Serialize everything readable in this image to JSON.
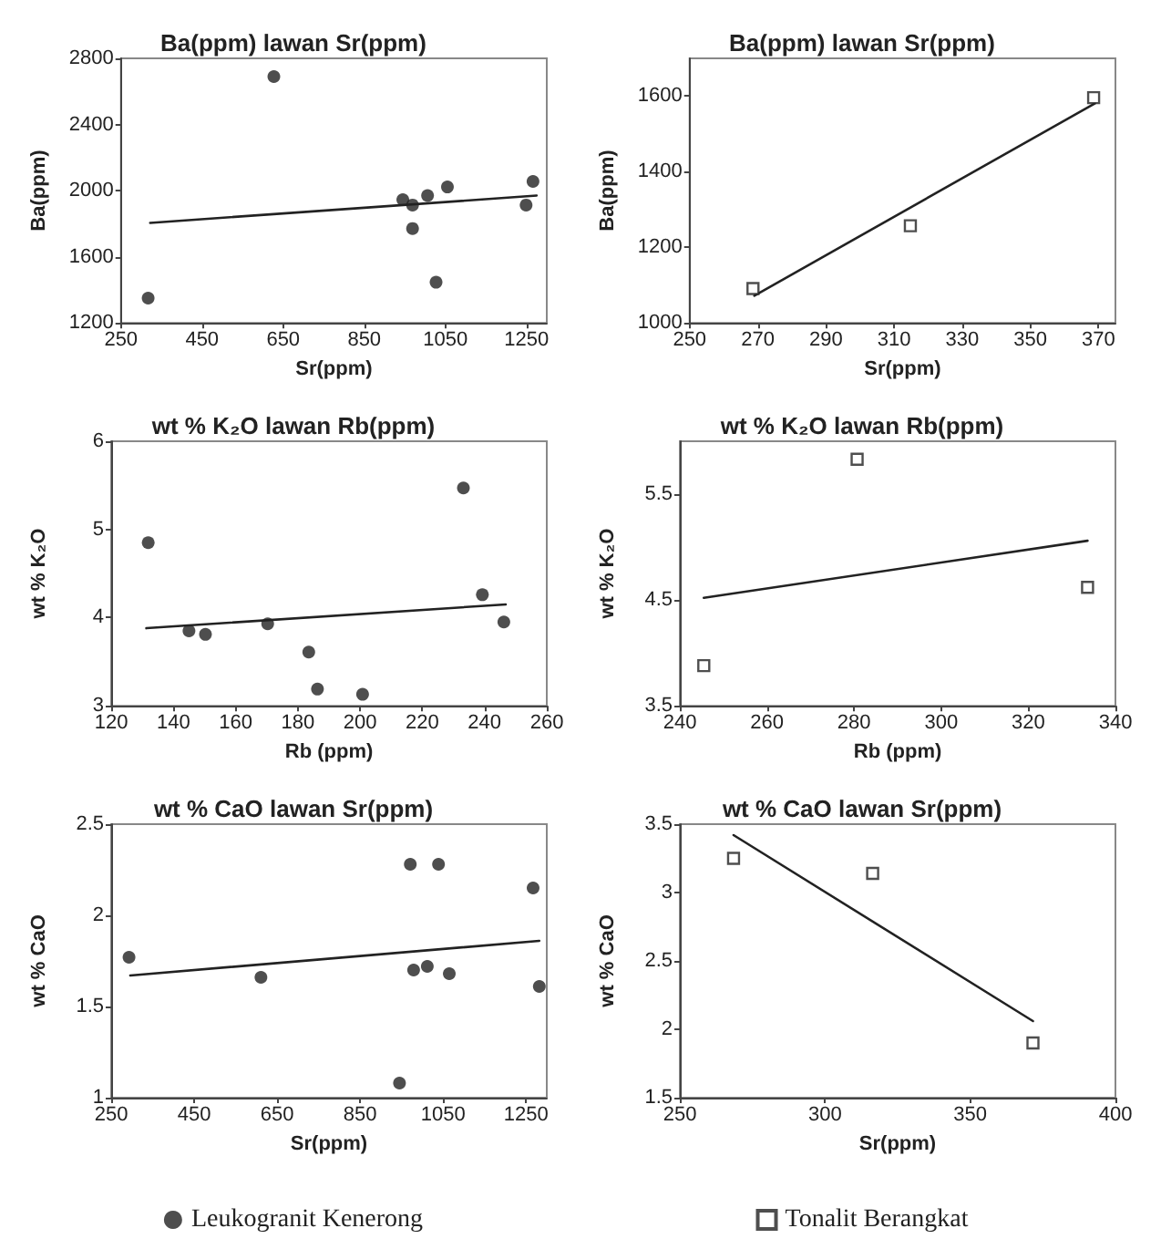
{
  "chart_data": [
    {
      "type": "scatter",
      "title": "Ba(ppm) lawan Sr(ppm)",
      "xlabel": "Sr(ppm)",
      "ylabel": "Ba(ppm)",
      "xlim": [
        250,
        1300
      ],
      "xticks": [
        250,
        450,
        650,
        850,
        1050,
        1250
      ],
      "ylim": [
        1200,
        2800
      ],
      "yticks": [
        1200,
        1600,
        2000,
        2400,
        2800
      ],
      "marker": "circle",
      "grid": false,
      "series": [
        {
          "color": "#222222",
          "x": [
            317,
            627,
            945,
            969,
            969,
            1006,
            1027,
            1055,
            1249,
            1266
          ],
          "values": [
            1350,
            2690,
            1945,
            1913,
            1771,
            1970,
            1446,
            2022,
            1913,
            2056
          ]
        },
        {
          "type": "line",
          "marker": "none",
          "line_style": "solid",
          "color": "#222222",
          "x": [
            322,
            1275
          ],
          "values": [
            1805,
            1970
          ]
        }
      ]
    },
    {
      "type": "scatter",
      "title": "Ba(ppm) lawan Sr(ppm)",
      "xlabel": "Sr(ppm)",
      "ylabel": "Ba(ppm)",
      "xlim": [
        250,
        375
      ],
      "xticks": [
        250,
        270,
        290,
        310,
        330,
        350,
        370
      ],
      "ylim": [
        1000,
        1700
      ],
      "yticks": [
        1000,
        1200,
        1400,
        1600
      ],
      "marker": "square",
      "grid": false,
      "series": [
        {
          "color": "#222222",
          "x": [
            268.6,
            314.8,
            368.6
          ],
          "values": [
            1091,
            1257,
            1596
          ]
        },
        {
          "type": "line",
          "marker": "none",
          "line_style": "solid",
          "color": "#222222",
          "x": [
            269,
            369
          ],
          "values": [
            1072,
            1581
          ]
        }
      ]
    },
    {
      "type": "scatter",
      "title": "wt % K₂O lawan Rb(ppm)",
      "xlabel": "Rb (ppm)",
      "ylabel": "wt % K₂O",
      "xlim": [
        120,
        260
      ],
      "xticks": [
        120,
        140,
        160,
        180,
        200,
        220,
        240,
        260
      ],
      "ylim": [
        3,
        6
      ],
      "yticks": [
        3,
        4,
        5,
        6
      ],
      "marker": "circle",
      "grid": false,
      "series": [
        {
          "color": "#222222",
          "x": [
            131.9,
            145,
            150.3,
            170.3,
            183.5,
            186.3,
            200.8,
            233.2,
            239.3,
            246.2
          ],
          "values": [
            4.85,
            3.85,
            3.81,
            3.93,
            3.61,
            3.19,
            3.13,
            5.47,
            4.26,
            3.95
          ]
        },
        {
          "type": "line",
          "marker": "none",
          "line_style": "solid",
          "color": "#222222",
          "x": [
            131.3,
            246.8
          ],
          "values": [
            3.88,
            4.15
          ]
        }
      ]
    },
    {
      "type": "scatter",
      "title": "wt % K₂O lawan Rb(ppm)",
      "xlabel": "Rb (ppm)",
      "ylabel": "wt % K₂O",
      "xlim": [
        240,
        340
      ],
      "xticks": [
        240,
        260,
        280,
        300,
        320,
        340
      ],
      "ylim": [
        3.5,
        6
      ],
      "yticks": [
        3.5,
        4.5,
        5.5
      ],
      "marker": "square",
      "grid": false,
      "series": [
        {
          "color": "#222222",
          "x": [
            245.5,
            280.7,
            333.6
          ],
          "values": [
            3.88,
            5.83,
            4.62
          ]
        },
        {
          "type": "line",
          "marker": "none",
          "line_style": "solid",
          "color": "#222222",
          "x": [
            245.5,
            333.6
          ],
          "values": [
            4.52,
            5.06
          ]
        }
      ]
    },
    {
      "type": "scatter",
      "title": "wt % CaO lawan Sr(ppm)",
      "xlabel": "Sr(ppm)",
      "ylabel": "wt % CaO",
      "xlim": [
        250,
        1300
      ],
      "xticks": [
        250,
        450,
        650,
        850,
        1050,
        1250
      ],
      "ylim": [
        1,
        2.5
      ],
      "yticks": [
        1,
        1.5,
        2,
        2.5
      ],
      "marker": "circle",
      "grid": false,
      "legend": "bottom",
      "series": [
        {
          "name": "Leukogranit Kenerong",
          "color": "#222222",
          "x": [
            293,
            611,
            945,
            971,
            979,
            1012,
            1039,
            1065,
            1267,
            1282
          ],
          "values": [
            1.77,
            1.66,
            1.08,
            2.28,
            1.7,
            1.72,
            2.28,
            1.68,
            2.15,
            1.61
          ]
        },
        {
          "type": "line",
          "marker": "none",
          "line_style": "solid",
          "color": "#222222",
          "x": [
            296,
            1282
          ],
          "values": [
            1.67,
            1.86
          ]
        }
      ]
    },
    {
      "type": "scatter",
      "title": "wt % CaO lawan Sr(ppm)",
      "xlabel": "Sr(ppm)",
      "ylabel": "wt % CaO",
      "xlim": [
        250,
        400
      ],
      "xticks": [
        250,
        300,
        350,
        400
      ],
      "ylim": [
        1.5,
        3.5
      ],
      "yticks": [
        1.5,
        2,
        2.5,
        3,
        3.5
      ],
      "marker": "square",
      "grid": false,
      "legend": "bottom",
      "series": [
        {
          "name": "Tonalit Berangkat",
          "color": "#222222",
          "x": [
            268.5,
            316.4,
            371.6
          ],
          "values": [
            3.25,
            3.14,
            1.9
          ]
        },
        {
          "type": "line",
          "marker": "none",
          "line_style": "solid",
          "color": "#222222",
          "x": [
            268.5,
            371.6
          ],
          "values": [
            3.42,
            2.06
          ]
        }
      ]
    }
  ]
}
